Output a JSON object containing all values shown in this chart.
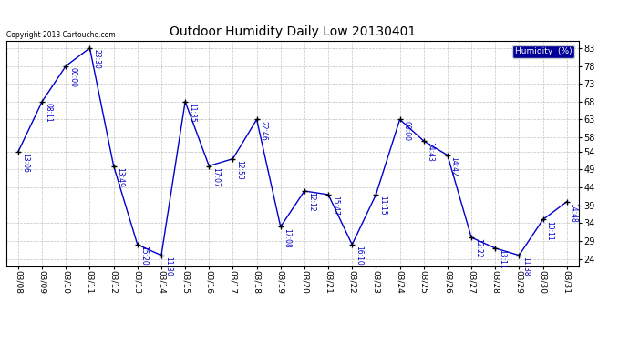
{
  "title": "Outdoor Humidity Daily Low 20130401",
  "copyright": "Copyright 2013 Cartouche.com",
  "legend_label": "Humidity  (%)",
  "dates": [
    "03/08",
    "03/09",
    "03/10",
    "03/11",
    "03/12",
    "03/13",
    "03/14",
    "03/15",
    "03/16",
    "03/17",
    "03/18",
    "03/19",
    "03/20",
    "03/21",
    "03/22",
    "03/23",
    "03/24",
    "03/25",
    "03/26",
    "03/27",
    "03/28",
    "03/29",
    "03/30",
    "03/31"
  ],
  "values": [
    54,
    68,
    78,
    83,
    50,
    28,
    25,
    68,
    50,
    52,
    63,
    33,
    43,
    42,
    28,
    42,
    63,
    57,
    53,
    30,
    27,
    25,
    35,
    40
  ],
  "times": [
    "13:06",
    "08:11",
    "00:00",
    "23:30",
    "13:49",
    "15:20",
    "11:30",
    "11:35",
    "17:07",
    "12:53",
    "22:46",
    "17:08",
    "12:12",
    "15:47",
    "16:10",
    "11:15",
    "00:00",
    "14:43",
    "14:42",
    "12:22",
    "13:11",
    "11:38",
    "10:11",
    "14:48"
  ],
  "line_color": "#0000cc",
  "marker_color": "#000000",
  "bg_color": "#ffffff",
  "grid_color": "#b0b0b0",
  "title_color": "#000000",
  "label_color": "#0000cc",
  "legend_bg": "#000099",
  "legend_text_color": "#ffffff",
  "copyright_color": "#000000",
  "ylim": [
    22,
    85
  ],
  "yticks": [
    24,
    29,
    34,
    39,
    44,
    49,
    54,
    58,
    63,
    68,
    73,
    78,
    83
  ]
}
